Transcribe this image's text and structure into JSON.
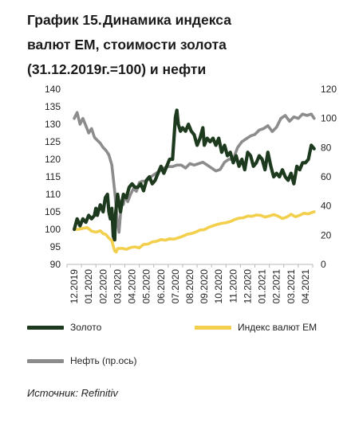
{
  "title": {
    "number": "График 15.",
    "line1": "Динамика индекса",
    "line2": "валют ЕМ, стоимости золота",
    "line3": "(31.12.2019г.=100) и нефти"
  },
  "legend": {
    "gold": "Золото",
    "em": "Индекс валют ЕМ",
    "oil": "Нефть (пр.ось)"
  },
  "source": "Источник: Refinitiv",
  "colors": {
    "gold": "#1e3a1e",
    "em": "#f2cf4d",
    "oil": "#8c8c8c"
  },
  "chart_data": {
    "type": "line",
    "x_ticks": [
      "12.2019",
      "01.2020",
      "02.2020",
      "03.2020",
      "04.2020",
      "05.2020",
      "06.2020",
      "07.2020",
      "08.2020",
      "09.2020",
      "10.2020",
      "11.2020",
      "12.2020",
      "01.2021",
      "02.2021",
      "03.2021",
      "04.2021"
    ],
    "y_left": {
      "min": 90,
      "max": 140,
      "step": 5
    },
    "y_right": {
      "min": 0,
      "max": 120,
      "step": 20
    },
    "legend_position": "bottom",
    "grid": false,
    "series": [
      {
        "name": "Золото",
        "axis": "left",
        "x": [
          0,
          0.2,
          0.4,
          0.5,
          0.6,
          0.8,
          1.0,
          1.2,
          1.4,
          1.5,
          1.6,
          1.8,
          2.0,
          2.15,
          2.3,
          2.4,
          2.5,
          2.6,
          2.7,
          2.8,
          2.85,
          3.0,
          3.2,
          3.4,
          3.6,
          3.8,
          4.0,
          4.2,
          4.4,
          4.6,
          4.8,
          5.0,
          5.2,
          5.4,
          5.6,
          5.8,
          6.0,
          6.2,
          6.4,
          6.6,
          6.8,
          6.9,
          7.0,
          7.1,
          7.2,
          7.35,
          7.5,
          7.7,
          7.9,
          8.1,
          8.3,
          8.5,
          8.7,
          8.9,
          9.0,
          9.2,
          9.4,
          9.6,
          9.8,
          10.0,
          10.2,
          10.4,
          10.6,
          10.8,
          11.0,
          11.2,
          11.4,
          11.6,
          11.8,
          12.0,
          12.2,
          12.4,
          12.6,
          12.8,
          13.0,
          13.2,
          13.4,
          13.6,
          13.8,
          14.0,
          14.2,
          14.4,
          14.6,
          14.8,
          15.0,
          15.2,
          15.4,
          15.6,
          15.8,
          16.0,
          16.2,
          16.4,
          16.6
        ],
        "y": [
          100,
          103,
          101,
          102,
          103,
          102,
          104,
          103,
          104,
          106,
          104,
          107,
          105,
          109,
          110,
          105,
          103,
          106,
          98,
          97,
          104,
          110,
          105,
          110,
          109,
          112,
          113,
          112,
          112,
          113,
          111,
          114,
          115,
          113,
          114,
          116,
          118,
          116,
          118,
          120,
          120,
          126,
          132,
          134,
          130,
          128,
          129,
          128,
          130,
          128,
          127,
          124,
          126,
          129,
          124,
          126,
          125,
          126,
          124,
          126,
          122,
          124,
          121,
          122,
          119,
          121,
          118,
          120,
          117,
          122,
          121,
          118,
          119,
          121,
          120,
          117,
          122,
          118,
          115,
          116,
          115,
          117,
          115,
          114,
          116,
          113,
          118,
          117,
          119,
          119,
          120,
          124,
          123
        ]
      },
      {
        "name": "Индекс валют ЕМ",
        "axis": "left",
        "x": [
          0,
          0.3,
          0.6,
          0.9,
          1.2,
          1.5,
          1.8,
          2.0,
          2.2,
          2.4,
          2.6,
          2.7,
          2.8,
          2.9,
          3.0,
          3.3,
          3.6,
          3.9,
          4.2,
          4.5,
          4.8,
          5.1,
          5.4,
          5.7,
          6.0,
          6.3,
          6.6,
          6.9,
          7.2,
          7.5,
          7.8,
          8.1,
          8.4,
          8.7,
          9.0,
          9.3,
          9.6,
          9.9,
          10.2,
          10.5,
          10.8,
          11.1,
          11.4,
          11.7,
          12.0,
          12.3,
          12.6,
          12.9,
          13.2,
          13.5,
          13.8,
          14.1,
          14.4,
          14.7,
          15.0,
          15.3,
          15.6,
          15.9,
          16.2,
          16.5,
          16.6
        ],
        "y": [
          100,
          100,
          100.3,
          100.5,
          99.5,
          99.2,
          99.6,
          98.8,
          98.5,
          97.5,
          96.8,
          95.2,
          93.8,
          93.5,
          94.5,
          94.6,
          94.3,
          94.8,
          95.0,
          94.7,
          95.7,
          95.8,
          96.4,
          96.6,
          97.1,
          96.9,
          97.3,
          97.2,
          97.6,
          98.0,
          98.6,
          98.8,
          99.2,
          99.8,
          99.9,
          100.6,
          101.0,
          101.4,
          101.7,
          101.9,
          102.2,
          102.8,
          103.2,
          103.3,
          103.8,
          103.7,
          104.1,
          104.0,
          103.5,
          103.8,
          104.2,
          103.8,
          103.1,
          103.5,
          104.3,
          103.6,
          104.0,
          104.6,
          104.4,
          104.9,
          105.0
        ]
      },
      {
        "name": "Нефть (пр.ось)",
        "axis": "right",
        "x": [
          0,
          0.2,
          0.4,
          0.6,
          0.8,
          1.0,
          1.2,
          1.4,
          1.6,
          1.8,
          2.0,
          2.2,
          2.4,
          2.6,
          2.8,
          3.0,
          3.1,
          3.2,
          3.3,
          3.4,
          3.5,
          3.7,
          3.9,
          4.1,
          4.3,
          4.5,
          4.7,
          5.0,
          5.3,
          5.6,
          5.9,
          6.2,
          6.5,
          6.8,
          7.1,
          7.4,
          7.7,
          8.0,
          8.3,
          8.6,
          8.9,
          9.2,
          9.5,
          9.8,
          10.1,
          10.4,
          10.7,
          11.0,
          11.3,
          11.6,
          11.9,
          12.2,
          12.5,
          12.8,
          13.1,
          13.4,
          13.7,
          14.0,
          14.3,
          14.6,
          14.9,
          15.2,
          15.5,
          15.8,
          16.1,
          16.4,
          16.6
        ],
        "y": [
          100,
          104,
          96,
          100,
          95,
          90,
          93,
          87,
          85,
          83,
          80,
          78,
          75,
          68,
          50,
          28,
          22,
          34,
          44,
          41,
          47,
          43,
          48,
          52,
          50,
          56,
          57,
          57,
          60,
          62,
          64,
          66,
          67,
          67,
          68,
          68,
          66,
          69,
          68,
          69,
          70,
          68,
          66,
          64,
          65,
          70,
          72,
          72,
          80,
          84,
          86,
          88,
          89,
          92,
          93,
          95,
          91,
          94,
          100,
          102,
          98,
          101,
          100,
          103,
          102,
          103,
          100
        ]
      }
    ]
  }
}
